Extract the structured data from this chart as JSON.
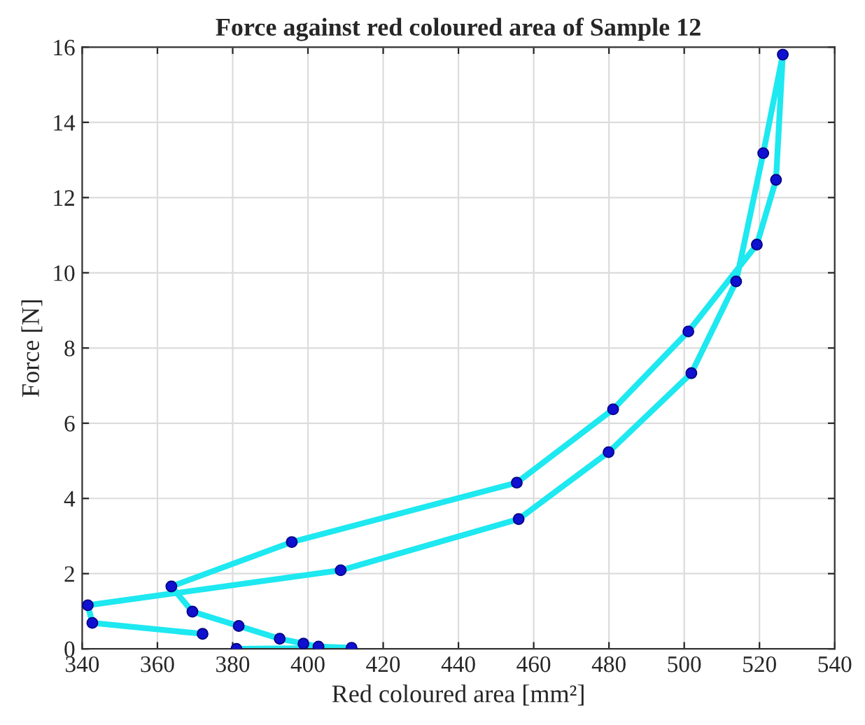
{
  "chart_data": {
    "type": "line",
    "title": "Force against red coloured area of Sample 12",
    "xlabel": "Red coloured area [mm²]",
    "ylabel": "Force [N]",
    "x": [
      381,
      411.6,
      402.8,
      398.8,
      392.5,
      381.6,
      369.3,
      363.7,
      395.7,
      455.5,
      481.1,
      501.1,
      519.3,
      524.4,
      526.2,
      521,
      513.8,
      501.9,
      479.9,
      456,
      408.7,
      341.5,
      342.7,
      372
    ],
    "series": [
      {
        "color": "#1ee8f0",
        "marker": "none",
        "values": [
          0.0,
          0.03,
          0.06,
          0.14,
          0.27,
          0.61,
          0.99,
          1.66,
          2.84,
          4.42,
          6.37,
          8.44,
          10.75,
          12.47,
          15.8,
          13.18,
          9.77,
          7.33,
          5.23,
          3.45,
          2.09,
          1.16,
          0.69,
          0.4
        ]
      },
      {
        "type": "scatter",
        "color": "#1010d0",
        "marker": "circle",
        "values": [
          0.0,
          0.03,
          0.06,
          0.14,
          0.27,
          0.61,
          0.99,
          1.66,
          2.84,
          4.42,
          6.37,
          8.44,
          10.75,
          12.47,
          15.8,
          13.18,
          9.77,
          7.33,
          5.23,
          3.45,
          2.09,
          1.16,
          0.69,
          0.4
        ]
      }
    ],
    "xlim": [
      340,
      540
    ],
    "xticks": [
      340,
      360,
      380,
      400,
      420,
      440,
      460,
      480,
      500,
      520,
      540
    ],
    "ylim": [
      0,
      16
    ],
    "yticks": [
      0,
      2,
      4,
      6,
      8,
      10,
      12,
      14,
      16
    ],
    "grid": true,
    "legend": false
  }
}
